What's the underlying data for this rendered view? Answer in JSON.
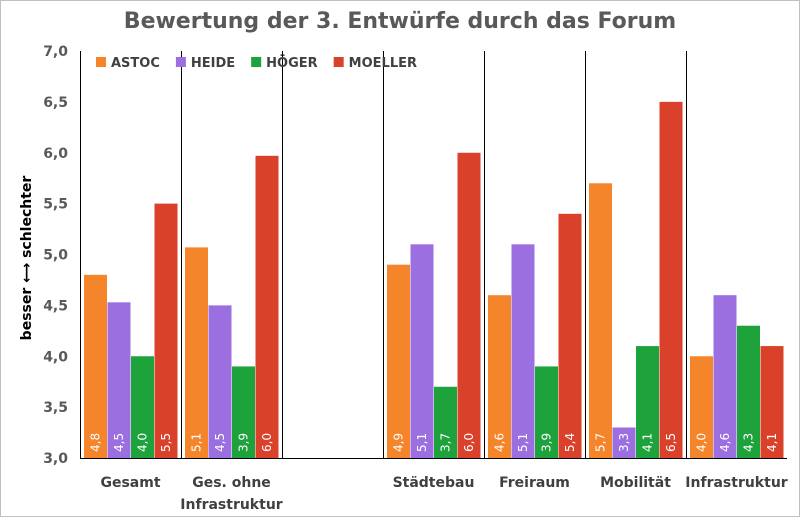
{
  "chart_data": {
    "type": "bar",
    "title": "Bewertung der 3. Entwürfe durch das Forum",
    "ylabel": "besser ⟷ schlechter",
    "ylim": [
      3.0,
      7.0
    ],
    "y_ticks": [
      "3,0",
      "3,5",
      "4,0",
      "4,5",
      "5,0",
      "5,5",
      "6,0",
      "6,5",
      "7,0"
    ],
    "categories": [
      [
        "Gesamt"
      ],
      [
        "Ges. ohne",
        "Infrastruktur"
      ],
      [
        ""
      ],
      [
        "Städtebau"
      ],
      [
        "Freiraum"
      ],
      [
        "Mobilität"
      ],
      [
        "Infrastruktur"
      ]
    ],
    "series": [
      {
        "name": "ASTOC",
        "color": "#f5852a",
        "values": [
          4.8,
          5.07,
          null,
          4.9,
          4.6,
          5.7,
          4.0
        ],
        "labels": [
          "4,8",
          "5,1",
          "",
          "4,9",
          "4,6",
          "5,7",
          "4,0"
        ]
      },
      {
        "name": "HEIDE",
        "color": "#9b6fe0",
        "values": [
          4.53,
          4.5,
          null,
          5.1,
          5.1,
          3.3,
          4.6
        ],
        "labels": [
          "4,5",
          "4,5",
          "",
          "5,1",
          "5,1",
          "3,3",
          "4,6"
        ]
      },
      {
        "name": "HÖGER",
        "color": "#1ea23c",
        "values": [
          4.0,
          3.9,
          null,
          3.7,
          3.9,
          4.1,
          4.3
        ],
        "labels": [
          "4,0",
          "3,9",
          "",
          "3,7",
          "3,9",
          "4,1",
          "4,3"
        ]
      },
      {
        "name": "MOELLER",
        "color": "#d9412b",
        "values": [
          5.5,
          5.97,
          null,
          6.0,
          5.4,
          6.5,
          4.1
        ],
        "labels": [
          "5,5",
          "6,0",
          "",
          "6,0",
          "5,4",
          "6,5",
          "4,1"
        ]
      }
    ],
    "legend_position": "top-left",
    "grid": false,
    "group_separators": true
  }
}
